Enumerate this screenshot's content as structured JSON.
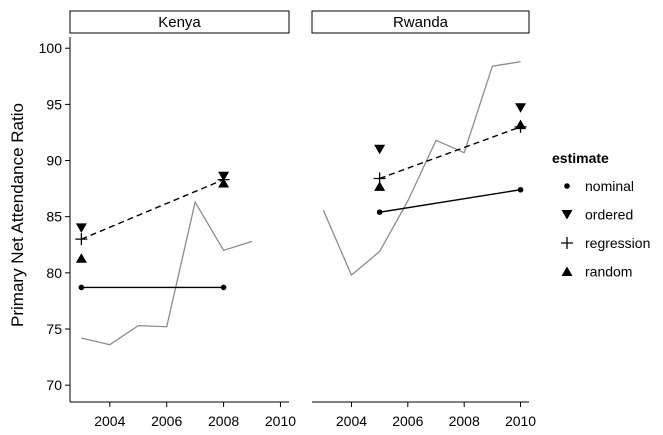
{
  "chart_data": {
    "type": "scatter",
    "ylabel": "Primary Net Attendance Ratio",
    "ylim": [
      68.5,
      101
    ],
    "yticks": [
      70,
      75,
      80,
      85,
      90,
      95,
      100
    ],
    "xticks": [
      2004,
      2006,
      2008,
      2010
    ],
    "legend": {
      "title": "estimate",
      "position": "right",
      "entries": [
        {
          "name": "nominal",
          "marker": "circle"
        },
        {
          "name": "ordered",
          "marker": "triangle-down"
        },
        {
          "name": "regression",
          "marker": "plus"
        },
        {
          "name": "random",
          "marker": "triangle-up"
        }
      ]
    },
    "panels": [
      {
        "label": "Kenya",
        "xlim": [
          2002.6,
          2010.3
        ],
        "grey_line": {
          "x": [
            2003,
            2004,
            2005,
            2006,
            2007,
            2008,
            2009
          ],
          "y": [
            74.2,
            73.6,
            75.3,
            75.2,
            86.3,
            82.0,
            82.8
          ]
        },
        "points": {
          "nominal": [
            {
              "x": 2003,
              "y": 78.7
            },
            {
              "x": 2008,
              "y": 78.7
            }
          ],
          "ordered": [
            {
              "x": 2003,
              "y": 84.0
            },
            {
              "x": 2008,
              "y": 88.6
            }
          ],
          "regression": [
            {
              "x": 2003,
              "y": 83.0
            },
            {
              "x": 2008,
              "y": 88.3
            }
          ],
          "random": [
            {
              "x": 2003,
              "y": 81.3
            },
            {
              "x": 2008,
              "y": 88.0
            }
          ]
        },
        "nominal_line": {
          "x": [
            2003,
            2008
          ],
          "y": [
            78.7,
            78.7
          ]
        },
        "regression_line": {
          "x": [
            2003,
            2008
          ],
          "y": [
            83.0,
            88.3
          ]
        }
      },
      {
        "label": "Rwanda",
        "xlim": [
          2002.6,
          2010.3
        ],
        "grey_line": {
          "x": [
            2003,
            2004,
            2005,
            2006,
            2007,
            2008,
            2009,
            2010
          ],
          "y": [
            85.6,
            79.8,
            81.9,
            86.4,
            91.8,
            90.7,
            98.4,
            98.8
          ]
        },
        "points": {
          "nominal": [
            {
              "x": 2005,
              "y": 85.4
            },
            {
              "x": 2010,
              "y": 87.4
            }
          ],
          "ordered": [
            {
              "x": 2005,
              "y": 91.0
            },
            {
              "x": 2010,
              "y": 94.7
            }
          ],
          "regression": [
            {
              "x": 2005,
              "y": 88.4
            },
            {
              "x": 2010,
              "y": 93.0
            }
          ],
          "random": [
            {
              "x": 2005,
              "y": 87.7
            },
            {
              "x": 2010,
              "y": 93.2
            }
          ]
        },
        "nominal_line": {
          "x": [
            2005,
            2010
          ],
          "y": [
            85.4,
            87.4
          ]
        },
        "regression_line": {
          "x": [
            2005,
            2010
          ],
          "y": [
            88.4,
            93.0
          ]
        }
      }
    ]
  }
}
